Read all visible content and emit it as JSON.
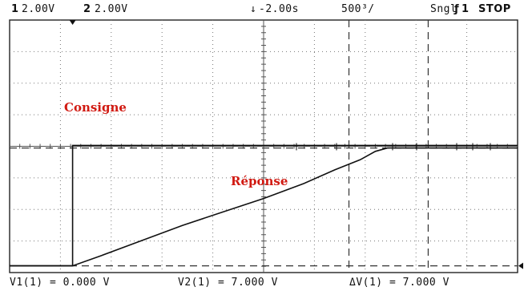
{
  "header": {
    "ch1_num": "1",
    "ch1_scale": "2.00V",
    "ch2_num": "2",
    "ch2_scale": "2.00V",
    "delay_symbol": "↓",
    "delay": "-2.00s",
    "timebase": "500³/",
    "mode": "Sngl",
    "trigger_symbol": "ƒ",
    "trigger_channel": "1",
    "status": "STOP"
  },
  "footer": {
    "v1": "V1(1) = 0.000 V",
    "v2": "V2(1) = 7.000 V",
    "dv": "ΔV(1) = 7.000 V"
  },
  "chart_data": {
    "type": "line",
    "title": "",
    "xlabel": "",
    "ylabel": "",
    "x_unit": "s",
    "y_unit": "V",
    "x_div": 0.5,
    "y_div": 2.0,
    "xlim": [
      -4.5,
      0.5
    ],
    "ylim": [
      -0.4,
      14.6
    ],
    "grid": true,
    "annotations": [
      "Consigne",
      "Réponse"
    ],
    "cursors": {
      "v1": 0.0,
      "v2": 7.0,
      "t1": -1.16,
      "t2": -0.38
    },
    "series": [
      {
        "name": "Consigne",
        "color": "#111111",
        "x": [
          -4.5,
          -3.88,
          -3.88,
          0.5
        ],
        "y": [
          0.0,
          0.0,
          7.15,
          7.15
        ]
      },
      {
        "name": "Réponse",
        "color": "#111111",
        "x": [
          -4.5,
          -3.88,
          -3.6,
          -3.2,
          -2.8,
          -2.4,
          -2.0,
          -1.6,
          -1.3,
          -1.05,
          -0.9,
          -0.78,
          0.5
        ],
        "y": [
          0.0,
          0.0,
          0.6,
          1.5,
          2.4,
          3.2,
          4.0,
          4.9,
          5.7,
          6.3,
          6.8,
          7.0,
          7.0
        ]
      }
    ]
  }
}
